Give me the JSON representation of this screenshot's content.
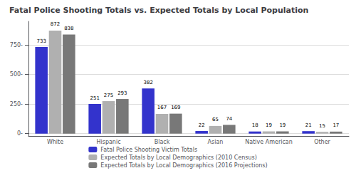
{
  "chart_data": {
    "type": "bar",
    "title": "Fatal Police Shooting Totals vs. Expected Totals by Local Population",
    "categories": [
      "White",
      "Hispanic",
      "Black",
      "Asian",
      "Native American",
      "Other"
    ],
    "series": [
      {
        "name": "Fatal Police Shooting Victim Totals",
        "color": "#3333cc",
        "values": [
          733,
          251,
          382,
          22,
          18,
          21
        ]
      },
      {
        "name": "Expected Totals by Local Demographics (2010 Census)",
        "color": "#b0b0b0",
        "values": [
          872,
          275,
          167,
          65,
          19,
          15
        ]
      },
      {
        "name": "Expected Totals by Local Demographics (2016 Projections)",
        "color": "#787878",
        "values": [
          838,
          293,
          169,
          74,
          19,
          17
        ]
      }
    ],
    "ylim": [
      -20,
      950
    ],
    "yticks": [
      {
        "value": 0,
        "label": "0-"
      },
      {
        "value": 250,
        "label": "250-"
      },
      {
        "value": 500,
        "label": "500-"
      },
      {
        "value": 750,
        "label": "750-"
      }
    ],
    "grid": true,
    "legend": "bottom",
    "data_labels": true
  }
}
